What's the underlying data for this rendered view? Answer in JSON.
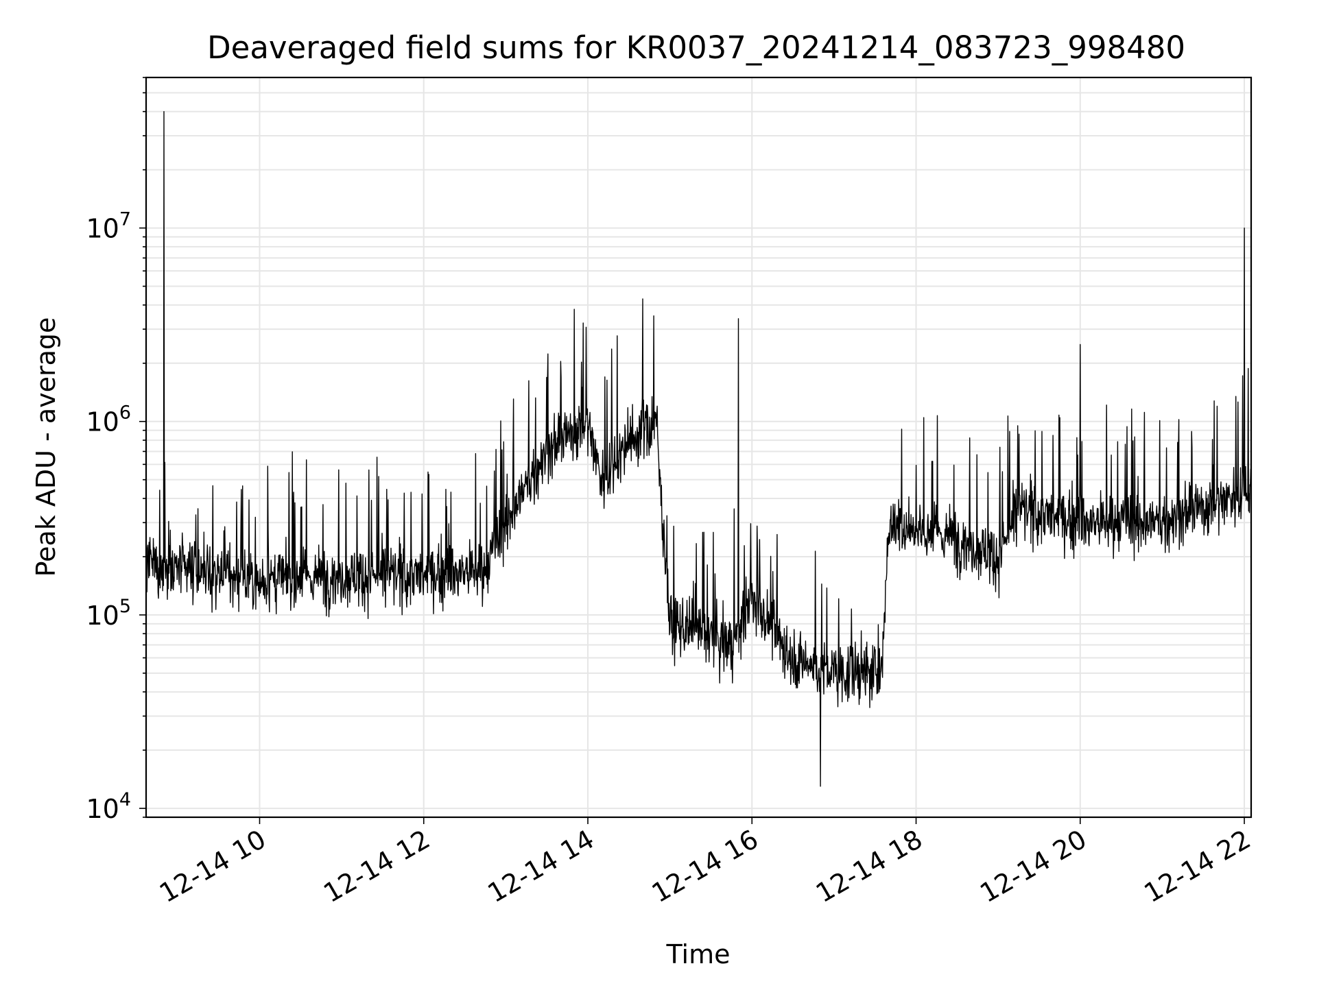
{
  "chart_data": {
    "type": "line",
    "title": "Deaveraged field sums for KR0037_20241214_083723_998480",
    "xlabel": "Time",
    "ylabel": "Peak ADU - average",
    "x_axis": {
      "kind": "datetime",
      "range": [
        "2024-12-14T08:37",
        "2024-12-14T22:05"
      ],
      "ticks": [
        {
          "at": "2024-12-14T10:00",
          "label": "12-14 10"
        },
        {
          "at": "2024-12-14T12:00",
          "label": "12-14 12"
        },
        {
          "at": "2024-12-14T14:00",
          "label": "12-14 14"
        },
        {
          "at": "2024-12-14T16:00",
          "label": "12-14 16"
        },
        {
          "at": "2024-12-14T18:00",
          "label": "12-14 18"
        },
        {
          "at": "2024-12-14T20:00",
          "label": "12-14 20"
        },
        {
          "at": "2024-12-14T22:00",
          "label": "12-14 22"
        }
      ]
    },
    "y_axis": {
      "scale": "log",
      "range": [
        9000,
        60000000
      ],
      "ticks": [
        {
          "value": 10000,
          "base": "10",
          "exp": "4"
        },
        {
          "value": 100000,
          "base": "10",
          "exp": "5"
        },
        {
          "value": 1000000,
          "base": "10",
          "exp": "6"
        },
        {
          "value": 10000000,
          "base": "10",
          "exp": "7"
        }
      ]
    },
    "grid": true,
    "line_color": "#000000",
    "grid_color": "#e6e6e6",
    "series": [
      {
        "typical_level": [
          {
            "time": "2024-12-14T08:37",
            "value": 180000
          },
          {
            "time": "2024-12-14T10:00",
            "value": 150000
          },
          {
            "time": "2024-12-14T11:00",
            "value": 160000
          },
          {
            "time": "2024-12-14T12:00",
            "value": 160000
          },
          {
            "time": "2024-12-14T12:45",
            "value": 170000
          },
          {
            "time": "2024-12-14T13:00",
            "value": 300000
          },
          {
            "time": "2024-12-14T13:30",
            "value": 700000
          },
          {
            "time": "2024-12-14T14:00",
            "value": 1000000
          },
          {
            "time": "2024-12-14T14:10",
            "value": 500000
          },
          {
            "time": "2024-12-14T14:30",
            "value": 800000
          },
          {
            "time": "2024-12-14T14:50",
            "value": 1000000
          },
          {
            "time": "2024-12-14T15:00",
            "value": 90000
          },
          {
            "time": "2024-12-14T15:45",
            "value": 70000
          },
          {
            "time": "2024-12-14T16:00",
            "value": 120000
          },
          {
            "time": "2024-12-14T16:30",
            "value": 60000
          },
          {
            "time": "2024-12-14T17:00",
            "value": 50000
          },
          {
            "time": "2024-12-14T17:35",
            "value": 50000
          },
          {
            "time": "2024-12-14T17:40",
            "value": 300000
          },
          {
            "time": "2024-12-14T18:30",
            "value": 250000
          },
          {
            "time": "2024-12-14T19:00",
            "value": 200000
          },
          {
            "time": "2024-12-14T19:15",
            "value": 350000
          },
          {
            "time": "2024-12-14T20:00",
            "value": 300000
          },
          {
            "time": "2024-12-14T21:00",
            "value": 300000
          },
          {
            "time": "2024-12-14T22:05",
            "value": 450000
          }
        ],
        "spikes": [
          {
            "time": "2024-12-14T08:50",
            "value": 40000000
          },
          {
            "time": "2024-12-14T13:50",
            "value": 3800000
          },
          {
            "time": "2024-12-14T14:40",
            "value": 4300000
          },
          {
            "time": "2024-12-14T15:50",
            "value": 3400000
          },
          {
            "time": "2024-12-14T20:00",
            "value": 2500000
          },
          {
            "time": "2024-12-14T22:00",
            "value": 10000000
          }
        ],
        "minimum": {
          "time": "2024-12-14T16:50",
          "value": 13000
        }
      }
    ]
  }
}
